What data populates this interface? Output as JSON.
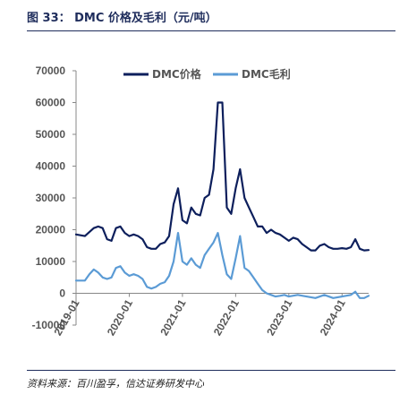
{
  "figure": {
    "title": "图 33： DMC 价格及毛利（元/吨）",
    "source": "资料来源：百川盈孚，信达证券研发中心"
  },
  "colors": {
    "price": "#0d1f5c",
    "margin": "#5b9bd5"
  },
  "chart_data": {
    "type": "line",
    "title": "",
    "xlabel": "",
    "ylabel": "",
    "ylim": [
      -10000,
      70000
    ],
    "yticks": [
      "-10000",
      "0",
      "10000",
      "20000",
      "30000",
      "40000",
      "50000",
      "60000",
      "70000"
    ],
    "xlim": [
      "2019-01",
      "2024-07"
    ],
    "xticks": [
      "2019-01",
      "2020-01",
      "2021-01",
      "2022-01",
      "2023-01",
      "2024-01"
    ],
    "legend": "top-center",
    "grid": false,
    "series": [
      {
        "name": "DMC价格",
        "points": [
          [
            "2019-01",
            18500
          ],
          [
            "2019-03",
            18000
          ],
          [
            "2019-05",
            20500
          ],
          [
            "2019-06",
            21000
          ],
          [
            "2019-07",
            20500
          ],
          [
            "2019-08",
            17000
          ],
          [
            "2019-09",
            16500
          ],
          [
            "2019-10",
            20500
          ],
          [
            "2019-11",
            21000
          ],
          [
            "2019-12",
            19000
          ],
          [
            "2020-01",
            18000
          ],
          [
            "2020-02",
            18500
          ],
          [
            "2020-03",
            18000
          ],
          [
            "2020-04",
            17000
          ],
          [
            "2020-05",
            14500
          ],
          [
            "2020-06",
            14000
          ],
          [
            "2020-07",
            14000
          ],
          [
            "2020-08",
            15500
          ],
          [
            "2020-09",
            16000
          ],
          [
            "2020-10",
            18000
          ],
          [
            "2020-11",
            28000
          ],
          [
            "2020-12",
            33000
          ],
          [
            "2021-01",
            23000
          ],
          [
            "2021-02",
            22000
          ],
          [
            "2021-03",
            27000
          ],
          [
            "2021-04",
            25000
          ],
          [
            "2021-05",
            24500
          ],
          [
            "2021-06",
            30000
          ],
          [
            "2021-07",
            31000
          ],
          [
            "2021-08",
            39000
          ],
          [
            "2021-09",
            60000
          ],
          [
            "2021-10",
            60000
          ],
          [
            "2021-11",
            27000
          ],
          [
            "2021-12",
            25000
          ],
          [
            "2022-01",
            33000
          ],
          [
            "2022-02",
            39000
          ],
          [
            "2022-03",
            30000
          ],
          [
            "2022-04",
            27000
          ],
          [
            "2022-05",
            24000
          ],
          [
            "2022-06",
            21000
          ],
          [
            "2022-07",
            21000
          ],
          [
            "2022-08",
            19000
          ],
          [
            "2022-09",
            20000
          ],
          [
            "2022-10",
            19000
          ],
          [
            "2022-11",
            18500
          ],
          [
            "2022-12",
            17500
          ],
          [
            "2023-01",
            16500
          ],
          [
            "2023-02",
            17500
          ],
          [
            "2023-03",
            17000
          ],
          [
            "2023-04",
            15500
          ],
          [
            "2023-05",
            14500
          ],
          [
            "2023-06",
            13500
          ],
          [
            "2023-07",
            13500
          ],
          [
            "2023-08",
            15000
          ],
          [
            "2023-09",
            15500
          ],
          [
            "2023-10",
            14500
          ],
          [
            "2023-11",
            14000
          ],
          [
            "2023-12",
            14000
          ],
          [
            "2024-01",
            14200
          ],
          [
            "2024-02",
            14000
          ],
          [
            "2024-03",
            14500
          ],
          [
            "2024-04",
            17000
          ],
          [
            "2024-05",
            14000
          ],
          [
            "2024-06",
            13500
          ],
          [
            "2024-07",
            13600
          ]
        ]
      },
      {
        "name": "DMC毛利",
        "points": [
          [
            "2019-01",
            4000
          ],
          [
            "2019-03",
            4000
          ],
          [
            "2019-04",
            6000
          ],
          [
            "2019-05",
            7500
          ],
          [
            "2019-06",
            6500
          ],
          [
            "2019-07",
            5000
          ],
          [
            "2019-08",
            4500
          ],
          [
            "2019-09",
            5000
          ],
          [
            "2019-10",
            8000
          ],
          [
            "2019-11",
            8500
          ],
          [
            "2019-12",
            6500
          ],
          [
            "2020-01",
            5500
          ],
          [
            "2020-02",
            6000
          ],
          [
            "2020-03",
            5500
          ],
          [
            "2020-04",
            4500
          ],
          [
            "2020-05",
            2000
          ],
          [
            "2020-06",
            1500
          ],
          [
            "2020-07",
            2000
          ],
          [
            "2020-08",
            3000
          ],
          [
            "2020-09",
            3500
          ],
          [
            "2020-10",
            5500
          ],
          [
            "2020-11",
            10000
          ],
          [
            "2020-12",
            19000
          ],
          [
            "2021-01",
            10000
          ],
          [
            "2021-02",
            9000
          ],
          [
            "2021-03",
            11000
          ],
          [
            "2021-04",
            9000
          ],
          [
            "2021-05",
            8000
          ],
          [
            "2021-06",
            12000
          ],
          [
            "2021-07",
            14000
          ],
          [
            "2021-08",
            16000
          ],
          [
            "2021-09",
            19000
          ],
          [
            "2021-10",
            12000
          ],
          [
            "2021-11",
            6000
          ],
          [
            "2021-12",
            4500
          ],
          [
            "2022-01",
            11000
          ],
          [
            "2022-02",
            18000
          ],
          [
            "2022-03",
            8000
          ],
          [
            "2022-04",
            7000
          ],
          [
            "2022-05",
            5000
          ],
          [
            "2022-06",
            3000
          ],
          [
            "2022-07",
            1000
          ],
          [
            "2022-08",
            0
          ],
          [
            "2022-09",
            -500
          ],
          [
            "2022-10",
            -1000
          ],
          [
            "2022-11",
            -800
          ],
          [
            "2022-12",
            -500
          ],
          [
            "2023-01",
            -1000
          ],
          [
            "2023-03",
            -500
          ],
          [
            "2023-05",
            -1000
          ],
          [
            "2023-07",
            -1500
          ],
          [
            "2023-09",
            -500
          ],
          [
            "2023-11",
            -1500
          ],
          [
            "2024-01",
            -1000
          ],
          [
            "2024-03",
            -500
          ],
          [
            "2024-04",
            500
          ],
          [
            "2024-05",
            -1500
          ],
          [
            "2024-06",
            -1500
          ],
          [
            "2024-07",
            -800
          ]
        ]
      }
    ]
  }
}
